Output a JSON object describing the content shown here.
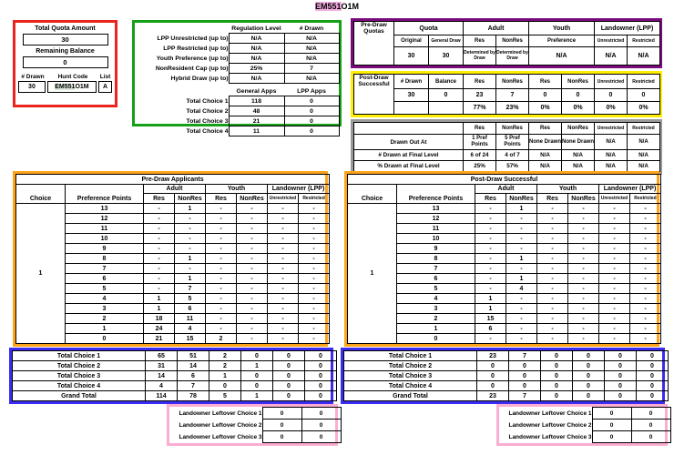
{
  "title": {
    "highlight": "EM551",
    "rest": "O1M"
  },
  "colors": {
    "quota_panel_border": "#e8241c",
    "regulation_panel_border": "#16a018",
    "pre_draw_quotas_border": "#7b0b7d",
    "post_draw_border": "#ffee00",
    "final_level_border": "#9a9a9a",
    "applicants_border": "#ffa418",
    "totals_border": "#3a2cf0",
    "leftover_border": "#fbaed2",
    "title_highlight": "#f6aee3",
    "hunt_code_highlight": "#d9e6d9"
  },
  "quota_panel": {
    "total_quota_label": "Total Quota Amount",
    "total_quota_value": "30",
    "remaining_label": "Remaining Balance",
    "remaining_value": "0",
    "drawn_label": "# Drawn",
    "drawn_value": "30",
    "hunt_code_label": "Hunt Code",
    "hunt_code_highlight": "EM551",
    "hunt_code_rest": "O1M",
    "list_label": "List",
    "list_value": "A"
  },
  "regulation_panel": {
    "headers": [
      "Regulation Level",
      "# Drawn"
    ],
    "rows": [
      {
        "label": "LPP Unrestricted (up to)",
        "values": [
          "N/A",
          "N/A"
        ]
      },
      {
        "label": "LPP Restricted (up to)",
        "values": [
          "N/A",
          "N/A"
        ]
      },
      {
        "label": "Youth Preference (up to)",
        "values": [
          "N/A",
          "N/A"
        ]
      },
      {
        "label": "NonResident Cap (up to)",
        "values": [
          "25%",
          "7"
        ]
      },
      {
        "label": "Hybrid Draw (up to)",
        "values": [
          "N/A",
          "N/A"
        ]
      }
    ],
    "apps_headers": [
      "General Apps",
      "LPP Apps"
    ],
    "apps_rows": [
      {
        "label": "Total Choice 1",
        "values": [
          "118",
          "0"
        ]
      },
      {
        "label": "Total Choice 2",
        "values": [
          "48",
          "0"
        ]
      },
      {
        "label": "Total Choice 3",
        "values": [
          "21",
          "0"
        ]
      },
      {
        "label": "Total Choice 4",
        "values": [
          "11",
          "0"
        ]
      }
    ]
  },
  "pre_draw_quotas": {
    "title": "Pre-Draw Quotas",
    "group_headers": [
      "Quota",
      "Adult",
      "Youth",
      "Landowner (LPP)"
    ],
    "sub_headers": [
      "Original",
      "General Draw",
      "Res",
      "NonRes",
      "Preference",
      "Unrestricted",
      "Restricted"
    ],
    "values": [
      "30",
      "30",
      "Determined by Draw",
      "Determined by Draw",
      "N/A",
      "N/A",
      "N/A"
    ]
  },
  "post_draw_panel": {
    "title": "Post-Draw Successful",
    "headers": [
      "# Drawn",
      "Balance",
      "Res",
      "NonRes",
      "Res",
      "NonRes",
      "Unrestricted",
      "Restricted"
    ],
    "values": [
      "30",
      "0",
      "23",
      "7",
      "0",
      "0",
      "0",
      "0"
    ],
    "percents": [
      "",
      "",
      "77%",
      "23%",
      "0%",
      "0%",
      "0%",
      "0%"
    ]
  },
  "final_level_panel": {
    "headers": [
      "Res",
      "NonRes",
      "Res",
      "NonRes",
      "Unrestricted",
      "Restricted"
    ],
    "rows": [
      {
        "label": "Drawn Out At",
        "values": [
          "1 Pref Points",
          "5 Pref Points",
          "None Drawn",
          "None Drawn",
          "N/A",
          "N/A"
        ]
      },
      {
        "label": "# Drawn at Final Level",
        "values": [
          "6 of 24",
          "4 of 7",
          "N/A",
          "N/A",
          "N/A",
          "N/A"
        ]
      },
      {
        "label": "% Drawn at Final Level",
        "values": [
          "25%",
          "57%",
          "N/A",
          "N/A",
          "N/A",
          "N/A"
        ]
      }
    ]
  },
  "applicants": [
    {
      "title": "Pre-Draw Applicants",
      "choice_header": "Choice",
      "points_header": "Preference Points",
      "group_headers": [
        "Adult",
        "Youth",
        "Landowner (LPP)"
      ],
      "sub_headers": [
        "Res",
        "NonRes",
        "Res",
        "NonRes",
        "Unrestricted",
        "Restricted"
      ],
      "choice_value": "1",
      "rows": [
        {
          "points": "13",
          "values": [
            "-",
            "1",
            "-",
            "-",
            "-",
            "-"
          ]
        },
        {
          "points": "12",
          "values": [
            "-",
            "-",
            "-",
            "-",
            "-",
            "-"
          ]
        },
        {
          "points": "11",
          "values": [
            "-",
            "-",
            "-",
            "-",
            "-",
            "-"
          ]
        },
        {
          "points": "10",
          "values": [
            "-",
            "-",
            "-",
            "-",
            "-",
            "-"
          ]
        },
        {
          "points": "9",
          "values": [
            "-",
            "-",
            "-",
            "-",
            "-",
            "-"
          ]
        },
        {
          "points": "8",
          "values": [
            "-",
            "1",
            "-",
            "-",
            "-",
            "-"
          ]
        },
        {
          "points": "7",
          "values": [
            "-",
            "-",
            "-",
            "-",
            "-",
            "-"
          ]
        },
        {
          "points": "6",
          "values": [
            "-",
            "1",
            "-",
            "-",
            "-",
            "-"
          ]
        },
        {
          "points": "5",
          "values": [
            "-",
            "7",
            "-",
            "-",
            "-",
            "-"
          ]
        },
        {
          "points": "4",
          "values": [
            "1",
            "5",
            "-",
            "-",
            "-",
            "-"
          ]
        },
        {
          "points": "3",
          "values": [
            "1",
            "6",
            "-",
            "-",
            "-",
            "-"
          ]
        },
        {
          "points": "2",
          "values": [
            "18",
            "11",
            "-",
            "-",
            "-",
            "-"
          ]
        },
        {
          "points": "1",
          "values": [
            "24",
            "4",
            "-",
            "-",
            "-",
            "-"
          ]
        },
        {
          "points": "0",
          "values": [
            "21",
            "15",
            "2",
            "-",
            "-",
            "-"
          ]
        }
      ],
      "totals": [
        {
          "label": "Total Choice 1",
          "values": [
            "65",
            "51",
            "2",
            "0",
            "0",
            "0"
          ]
        },
        {
          "label": "Total Choice 2",
          "values": [
            "31",
            "14",
            "2",
            "1",
            "0",
            "0"
          ]
        },
        {
          "label": "Total Choice 3",
          "values": [
            "14",
            "6",
            "1",
            "0",
            "0",
            "0"
          ]
        },
        {
          "label": "Total Choice 4",
          "values": [
            "4",
            "7",
            "0",
            "0",
            "0",
            "0"
          ]
        },
        {
          "label": "Grand Total",
          "values": [
            "114",
            "78",
            "5",
            "1",
            "0",
            "0"
          ]
        }
      ],
      "leftovers": [
        {
          "label": "Landowner Leftover Choice 1",
          "values": [
            "0",
            "0"
          ]
        },
        {
          "label": "Landowner Leftover Choice 2",
          "values": [
            "0",
            "0"
          ]
        },
        {
          "label": "Landowner Leftover Choice 3",
          "values": [
            "0",
            "0"
          ]
        }
      ]
    },
    {
      "title": "Post-Draw Successful",
      "choice_header": "Choice",
      "points_header": "Preference Points",
      "group_headers": [
        "Adult",
        "Youth",
        "Landowner (LPP)"
      ],
      "sub_headers": [
        "Res",
        "NonRes",
        "Res",
        "NonRes",
        "Unrestricted",
        "Restricted"
      ],
      "choice_value": "1",
      "rows": [
        {
          "points": "13",
          "values": [
            "-",
            "1",
            "-",
            "-",
            "-",
            "-"
          ]
        },
        {
          "points": "12",
          "values": [
            "-",
            "-",
            "-",
            "-",
            "-",
            "-"
          ]
        },
        {
          "points": "11",
          "values": [
            "-",
            "-",
            "-",
            "-",
            "-",
            "-"
          ]
        },
        {
          "points": "10",
          "values": [
            "-",
            "-",
            "-",
            "-",
            "-",
            "-"
          ]
        },
        {
          "points": "9",
          "values": [
            "-",
            "-",
            "-",
            "-",
            "-",
            "-"
          ]
        },
        {
          "points": "8",
          "values": [
            "-",
            "1",
            "-",
            "-",
            "-",
            "-"
          ]
        },
        {
          "points": "7",
          "values": [
            "-",
            "-",
            "-",
            "-",
            "-",
            "-"
          ]
        },
        {
          "points": "6",
          "values": [
            "-",
            "1",
            "-",
            "-",
            "-",
            "-"
          ]
        },
        {
          "points": "5",
          "values": [
            "-",
            "4",
            "-",
            "-",
            "-",
            "-"
          ]
        },
        {
          "points": "4",
          "values": [
            "1",
            "-",
            "-",
            "-",
            "-",
            "-"
          ]
        },
        {
          "points": "3",
          "values": [
            "1",
            "-",
            "-",
            "-",
            "-",
            "-"
          ]
        },
        {
          "points": "2",
          "values": [
            "15",
            "-",
            "-",
            "-",
            "-",
            "-"
          ]
        },
        {
          "points": "1",
          "values": [
            "6",
            "-",
            "-",
            "-",
            "-",
            "-"
          ]
        },
        {
          "points": "0",
          "values": [
            "-",
            "-",
            "-",
            "-",
            "-",
            "-"
          ]
        }
      ],
      "totals": [
        {
          "label": "Total Choice 1",
          "values": [
            "23",
            "7",
            "0",
            "0",
            "0",
            "0"
          ]
        },
        {
          "label": "Total Choice 2",
          "values": [
            "0",
            "0",
            "0",
            "0",
            "0",
            "0"
          ]
        },
        {
          "label": "Total Choice 3",
          "values": [
            "0",
            "0",
            "0",
            "0",
            "0",
            "0"
          ]
        },
        {
          "label": "Total Choice 4",
          "values": [
            "0",
            "0",
            "0",
            "0",
            "0",
            "0"
          ]
        },
        {
          "label": "Grand Total",
          "values": [
            "23",
            "7",
            "0",
            "0",
            "0",
            "0"
          ]
        }
      ],
      "leftovers": [
        {
          "label": "Landowner Leftover Choice 1",
          "values": [
            "0",
            "0"
          ]
        },
        {
          "label": "Landowner Leftover Choice 2",
          "values": [
            "0",
            "0"
          ]
        },
        {
          "label": "Landowner Leftover Choice 3",
          "values": [
            "0",
            "0"
          ]
        }
      ]
    }
  ]
}
